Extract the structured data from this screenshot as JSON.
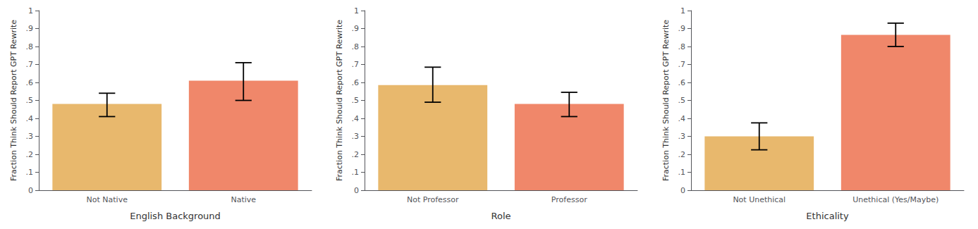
{
  "chart_data": [
    {
      "type": "bar",
      "xlabel": "English Background",
      "ylabel": "Fraction Think Should Report GPT Rewrite",
      "categories": [
        "Not Native",
        "Native"
      ],
      "values": [
        0.48,
        0.61
      ],
      "ci_lower": [
        0.41,
        0.5
      ],
      "ci_upper": [
        0.54,
        0.71
      ],
      "colors": [
        "#E8B86D",
        "#F0876A"
      ],
      "ylim": [
        0,
        1
      ],
      "yticks": [
        0,
        {
          "value": 0.1,
          "label": ".1"
        },
        {
          "value": 0.2,
          "label": ".2"
        },
        {
          "value": 0.3,
          "label": ".3"
        },
        {
          "value": 0.4,
          "label": ".4"
        },
        {
          "value": 0.5,
          "label": ".5"
        },
        {
          "value": 0.6,
          "label": ".6"
        },
        {
          "value": 0.7,
          "label": ".7"
        },
        {
          "value": 0.8,
          "label": ".8"
        },
        {
          "value": 0.9,
          "label": ".9"
        },
        1
      ],
      "grid": false
    },
    {
      "type": "bar",
      "xlabel": "Role",
      "ylabel": "Fraction Think Should Report GPT Rewrite",
      "categories": [
        "Not Professor",
        "Professor"
      ],
      "values": [
        0.585,
        0.48
      ],
      "ci_lower": [
        0.49,
        0.41
      ],
      "ci_upper": [
        0.685,
        0.545
      ],
      "colors": [
        "#E8B86D",
        "#F0876A"
      ],
      "ylim": [
        0,
        1
      ],
      "yticks": [
        0,
        {
          "value": 0.1,
          "label": ".1"
        },
        {
          "value": 0.2,
          "label": ".2"
        },
        {
          "value": 0.3,
          "label": ".3"
        },
        {
          "value": 0.4,
          "label": ".4"
        },
        {
          "value": 0.5,
          "label": ".5"
        },
        {
          "value": 0.6,
          "label": ".6"
        },
        {
          "value": 0.7,
          "label": ".7"
        },
        {
          "value": 0.8,
          "label": ".8"
        },
        {
          "value": 0.9,
          "label": ".9"
        },
        1
      ],
      "grid": false
    },
    {
      "type": "bar",
      "xlabel": "Ethicality",
      "ylabel": "Fraction Think Should Report GPT Rewrite",
      "categories": [
        "Not Unethical",
        "Unethical (Yes/Maybe)"
      ],
      "values": [
        0.3,
        0.865
      ],
      "ci_lower": [
        0.225,
        0.8
      ],
      "ci_upper": [
        0.375,
        0.93
      ],
      "colors": [
        "#E8B86D",
        "#F0876A"
      ],
      "ylim": [
        0,
        1
      ],
      "yticks": [
        0,
        {
          "value": 0.1,
          "label": ".1"
        },
        {
          "value": 0.2,
          "label": ".2"
        },
        {
          "value": 0.3,
          "label": ".3"
        },
        {
          "value": 0.4,
          "label": ".4"
        },
        {
          "value": 0.5,
          "label": ".5"
        },
        {
          "value": 0.6,
          "label": ".6"
        },
        {
          "value": 0.7,
          "label": ".7"
        },
        {
          "value": 0.8,
          "label": ".8"
        },
        {
          "value": 0.9,
          "label": ".9"
        },
        1
      ],
      "grid": false
    }
  ]
}
